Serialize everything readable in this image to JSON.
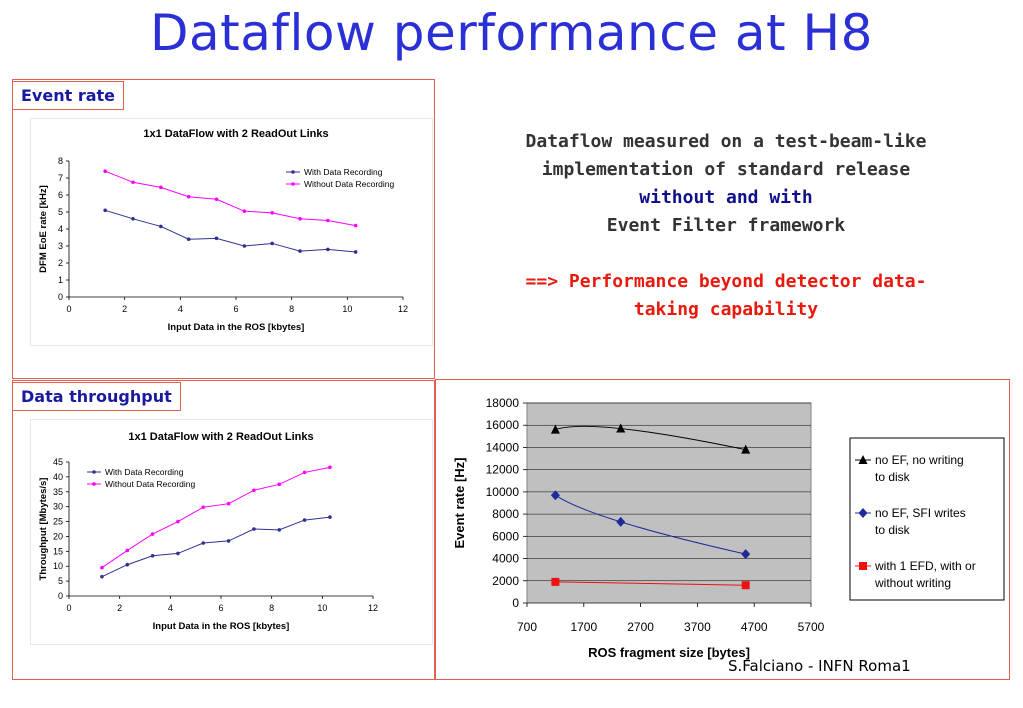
{
  "title": "Dataflow performance at H8",
  "labels": {
    "event_rate": "Event rate",
    "data_throughput": "Data throughput"
  },
  "description": {
    "line1": "Dataflow measured on a test-beam-like",
    "line2": "implementation of standard release",
    "line3": "without and with",
    "line4": "Event Filter framework",
    "line5": "==> Performance beyond detector data-",
    "line6": "taking capability"
  },
  "credit": "S.Falciano - INFN Roma1",
  "colors": {
    "title": "#2b2fd6",
    "highlight": "#e8190d",
    "border": "#e06050",
    "with_rec": "#2e3192",
    "without_rec": "#ff00ff"
  },
  "chart_data": [
    {
      "type": "line",
      "title": "1x1 DataFlow with 2 ReadOut Links",
      "xlabel": "Input Data in the ROS [kbytes]",
      "ylabel": "DFM EoE rate [kHz]",
      "xlim": [
        0,
        12
      ],
      "ylim": [
        0,
        8
      ],
      "xticks": [
        0,
        2,
        4,
        6,
        8,
        10,
        12
      ],
      "yticks": [
        0,
        1,
        2,
        3,
        4,
        5,
        6,
        7,
        8
      ],
      "legend": "top-right",
      "series": [
        {
          "name": "With Data Recording",
          "color": "#2e3192",
          "x": [
            1.3,
            2.3,
            3.3,
            4.3,
            5.3,
            6.3,
            7.3,
            8.3,
            9.3,
            10.3
          ],
          "y": [
            5.1,
            4.6,
            4.15,
            3.4,
            3.45,
            3.0,
            3.15,
            2.7,
            2.8,
            2.65
          ]
        },
        {
          "name": "Without Data Recording",
          "color": "#ff00ff",
          "x": [
            1.3,
            2.3,
            3.3,
            4.3,
            5.3,
            6.3,
            7.3,
            8.3,
            9.3,
            10.3
          ],
          "y": [
            7.4,
            6.75,
            6.45,
            5.9,
            5.75,
            5.05,
            4.95,
            4.6,
            4.5,
            4.2
          ]
        }
      ]
    },
    {
      "type": "line",
      "title": "1x1 DataFlow with 2 ReadOut Links",
      "xlabel": "Input Data in the ROS [kbytes]",
      "ylabel": "Throughput [Mbytes/s]",
      "xlim": [
        0,
        12
      ],
      "ylim": [
        0,
        45
      ],
      "xticks": [
        0,
        2,
        4,
        6,
        8,
        10,
        12
      ],
      "yticks": [
        0,
        5,
        10,
        15,
        20,
        25,
        30,
        35,
        40,
        45
      ],
      "legend": "top-left",
      "series": [
        {
          "name": "With Data Recording",
          "color": "#2e3192",
          "x": [
            1.3,
            2.3,
            3.3,
            4.3,
            5.3,
            6.3,
            7.3,
            8.3,
            9.3,
            10.3
          ],
          "y": [
            6.5,
            10.5,
            13.5,
            14.3,
            17.8,
            18.5,
            22.5,
            22.2,
            25.5,
            26.5
          ]
        },
        {
          "name": "Without Data Recording",
          "color": "#ff00ff",
          "x": [
            1.3,
            2.3,
            3.3,
            4.3,
            5.3,
            6.3,
            7.3,
            8.3,
            9.3,
            10.3
          ],
          "y": [
            9.5,
            15.3,
            20.8,
            25.0,
            29.8,
            31.0,
            35.5,
            37.5,
            41.5,
            43.2
          ]
        }
      ]
    },
    {
      "type": "line",
      "xlabel": "ROS fragment size [bytes]",
      "ylabel": "Event rate [Hz]",
      "xlim": [
        700,
        5700
      ],
      "ylim": [
        0,
        18000
      ],
      "xticks": [
        700,
        1700,
        2700,
        3700,
        4700,
        5700
      ],
      "yticks": [
        0,
        2000,
        4000,
        6000,
        8000,
        10000,
        12000,
        14000,
        16000,
        18000
      ],
      "plot_background": "#c0c0c0",
      "legend": "right",
      "series": [
        {
          "name": "no EF, no writing to disk",
          "color": "#000000",
          "marker": "triangle",
          "x": [
            1200,
            2350,
            4550
          ],
          "y": [
            15600,
            15700,
            13800
          ]
        },
        {
          "name": "no EF, SFI writes to disk",
          "color": "#1f2a9a",
          "marker": "diamond",
          "x": [
            1200,
            2350,
            4550
          ],
          "y": [
            9700,
            7300,
            4400
          ]
        },
        {
          "name": "with 1 EFD, with or without writing",
          "color": "#ee1111",
          "marker": "square",
          "x": [
            1200,
            4550
          ],
          "y": [
            1900,
            1600
          ]
        }
      ]
    }
  ]
}
